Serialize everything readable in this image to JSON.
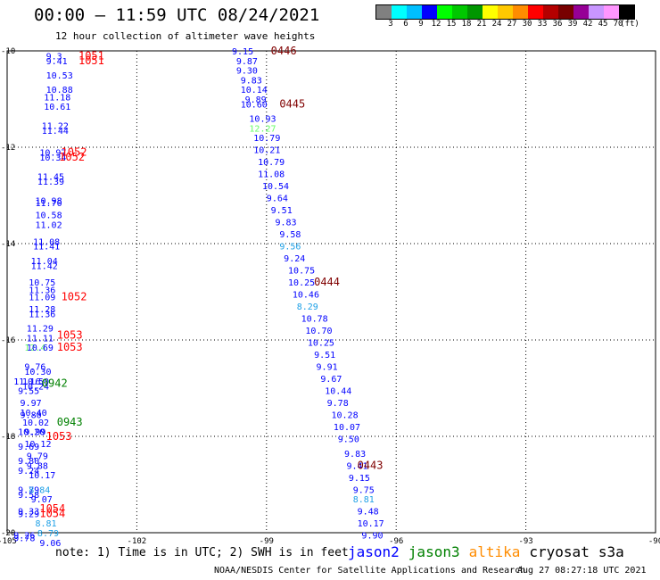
{
  "header": {
    "title": "00:00 – 11:59 UTC 08/24/2021",
    "subtitle": "12 hour collection of altimeter wave heights"
  },
  "colorbar": {
    "colors": [
      "#808080",
      "#00ffff",
      "#00bfff",
      "#0000ff",
      "#00ff00",
      "#00c800",
      "#009600",
      "#ffff00",
      "#ffc800",
      "#ff8c00",
      "#ff0000",
      "#b40000",
      "#780000",
      "#960096",
      "#c896ff",
      "#ff96ff",
      "#000000"
    ],
    "labels": [
      "3",
      "6",
      "9",
      "12",
      "15",
      "18",
      "21",
      "24",
      "27",
      "30",
      "33",
      "36",
      "39",
      "42",
      "45",
      "70",
      "(ft)"
    ]
  },
  "note": "note:  1) Time is in UTC;  2) SWH is in feet",
  "legend": [
    {
      "name": "jason2",
      "color": "#0000ff"
    },
    {
      "name": "jason3",
      "color": "#008000"
    },
    {
      "name": "altika",
      "color": "#ff8c00"
    },
    {
      "name": "cryosat"
    },
    {
      "name": "s3a"
    }
  ],
  "footer": {
    "left": "NOAA/NESDIS Center for Satellite Applications and Research",
    "right": "Aug 27 08:27:18 UTC 2021"
  },
  "chart_data": {
    "type": "scatter",
    "title": "00:00 – 11:59 UTC 08/24/2021",
    "xlim": [
      -105,
      -90
    ],
    "ylim": [
      -20,
      -10
    ],
    "xticks": [
      {
        "v": -105,
        "label": "-105"
      },
      {
        "v": -102,
        "label": "-102"
      },
      {
        "v": -99,
        "label": "-99"
      },
      {
        "v": -96,
        "label": "-96"
      },
      {
        "v": -93,
        "label": "-93"
      },
      {
        "v": -90,
        "label": "-90"
      }
    ],
    "yticks": [
      {
        "v": -10,
        "label": "-10"
      },
      {
        "v": -12,
        "label": "-12"
      },
      {
        "v": -14,
        "label": "-14"
      },
      {
        "v": -16,
        "label": "-16"
      },
      {
        "v": -18,
        "label": "-18"
      },
      {
        "v": -20,
        "label": "-20"
      }
    ],
    "grid": true,
    "labels": [
      {
        "lon": -99.8,
        "lat": -10.0,
        "text": "9.15",
        "color": "#0000ff"
      },
      {
        "lon": -99.7,
        "lat": -10.2,
        "text": "9.87",
        "color": "#0000ff"
      },
      {
        "lon": -99.7,
        "lat": -10.4,
        "text": "9.30",
        "color": "#0000ff"
      },
      {
        "lon": -99.6,
        "lat": -10.6,
        "text": "9.83",
        "color": "#0000ff"
      },
      {
        "lon": -99.6,
        "lat": -10.8,
        "text": "10.14",
        "color": "#0000ff"
      },
      {
        "lon": -99.5,
        "lat": -11.0,
        "text": "9.89",
        "color": "#0000ff"
      },
      {
        "lon": -99.6,
        "lat": -11.1,
        "text": "10.60",
        "color": "#0000ff"
      },
      {
        "lon": -99.4,
        "lat": -11.4,
        "text": "10.93",
        "color": "#0000ff"
      },
      {
        "lon": -99.4,
        "lat": -11.6,
        "text": "12.27",
        "color": "#66ff66"
      },
      {
        "lon": -99.3,
        "lat": -11.8,
        "text": "10.79",
        "color": "#0000ff"
      },
      {
        "lon": -99.3,
        "lat": -12.05,
        "text": "10.21",
        "color": "#0000ff"
      },
      {
        "lon": -99.2,
        "lat": -12.3,
        "text": "10.79",
        "color": "#0000ff"
      },
      {
        "lon": -99.2,
        "lat": -12.55,
        "text": "11.08",
        "color": "#0000ff"
      },
      {
        "lon": -99.1,
        "lat": -12.8,
        "text": "10.54",
        "color": "#0000ff"
      },
      {
        "lon": -99.0,
        "lat": -13.05,
        "text": "9.64",
        "color": "#0000ff"
      },
      {
        "lon": -98.9,
        "lat": -13.3,
        "text": "9.51",
        "color": "#0000ff"
      },
      {
        "lon": -98.8,
        "lat": -13.55,
        "text": "9.83",
        "color": "#0000ff"
      },
      {
        "lon": -98.7,
        "lat": -13.8,
        "text": "9.58",
        "color": "#0000ff"
      },
      {
        "lon": -98.7,
        "lat": -14.05,
        "text": "9.56",
        "color": "#1ea0e6"
      },
      {
        "lon": -98.6,
        "lat": -14.3,
        "text": "9.24",
        "color": "#0000ff"
      },
      {
        "lon": -98.5,
        "lat": -14.55,
        "text": "10.75",
        "color": "#0000ff"
      },
      {
        "lon": -98.5,
        "lat": -14.8,
        "text": "10.25",
        "color": "#0000ff"
      },
      {
        "lon": -98.4,
        "lat": -15.05,
        "text": "10.46",
        "color": "#0000ff"
      },
      {
        "lon": -98.3,
        "lat": -15.3,
        "text": "8.29",
        "color": "#1ea0e6"
      },
      {
        "lon": -98.2,
        "lat": -15.55,
        "text": "10.78",
        "color": "#0000ff"
      },
      {
        "lon": -98.1,
        "lat": -15.8,
        "text": "10.70",
        "color": "#0000ff"
      },
      {
        "lon": -98.05,
        "lat": -16.05,
        "text": "10.25",
        "color": "#0000ff"
      },
      {
        "lon": -97.9,
        "lat": -16.3,
        "text": "9.51",
        "color": "#0000ff"
      },
      {
        "lon": -97.85,
        "lat": -16.55,
        "text": "9.91",
        "color": "#0000ff"
      },
      {
        "lon": -97.75,
        "lat": -16.8,
        "text": "9.67",
        "color": "#0000ff"
      },
      {
        "lon": -97.65,
        "lat": -17.05,
        "text": "10.44",
        "color": "#0000ff"
      },
      {
        "lon": -97.6,
        "lat": -17.3,
        "text": "9.78",
        "color": "#0000ff"
      },
      {
        "lon": -97.5,
        "lat": -17.55,
        "text": "10.28",
        "color": "#0000ff"
      },
      {
        "lon": -97.45,
        "lat": -17.8,
        "text": "10.07",
        "color": "#0000ff"
      },
      {
        "lon": -97.35,
        "lat": -18.05,
        "text": "9.50",
        "color": "#0000ff"
      },
      {
        "lon": -97.2,
        "lat": -18.35,
        "text": "9.83",
        "color": "#0000ff"
      },
      {
        "lon": -97.15,
        "lat": -18.6,
        "text": "9.41",
        "color": "#0000ff"
      },
      {
        "lon": -97.1,
        "lat": -18.85,
        "text": "9.15",
        "color": "#0000ff"
      },
      {
        "lon": -97.0,
        "lat": -19.1,
        "text": "9.75",
        "color": "#0000ff"
      },
      {
        "lon": -97.0,
        "lat": -19.3,
        "text": "8.81",
        "color": "#1ea0e6"
      },
      {
        "lon": -96.9,
        "lat": -19.55,
        "text": "9.48",
        "color": "#0000ff"
      },
      {
        "lon": -96.9,
        "lat": -19.8,
        "text": "10.17",
        "color": "#0000ff"
      },
      {
        "lon": -96.8,
        "lat": -20.05,
        "text": "9.90",
        "color": "#0000ff"
      },
      {
        "lon": -98.9,
        "lat": -10.0,
        "text": "0446",
        "color": "#800000"
      },
      {
        "lon": -98.7,
        "lat": -11.1,
        "text": "0445",
        "color": "#800000"
      },
      {
        "lon": -97.9,
        "lat": -14.8,
        "text": "0444",
        "color": "#800000"
      },
      {
        "lon": -96.9,
        "lat": -18.6,
        "text": "0443",
        "color": "#800000"
      },
      {
        "lon": -104.1,
        "lat": -10.1,
        "text": "9.3",
        "color": "#0000ff"
      },
      {
        "lon": -104.1,
        "lat": -10.2,
        "text": "9.41",
        "color": "#0000ff"
      },
      {
        "lon": -104.1,
        "lat": -10.5,
        "text": "10.53",
        "color": "#0000ff"
      },
      {
        "lon": -104.1,
        "lat": -10.8,
        "text": "10.88",
        "color": "#0000ff"
      },
      {
        "lon": -104.15,
        "lat": -10.95,
        "text": "11.18",
        "color": "#0000ff"
      },
      {
        "lon": -104.15,
        "lat": -11.15,
        "text": "10.61",
        "color": "#0000ff"
      },
      {
        "lon": -104.2,
        "lat": -11.55,
        "text": "11.22",
        "color": "#0000ff"
      },
      {
        "lon": -104.2,
        "lat": -11.65,
        "text": "11.44",
        "color": "#0000ff"
      },
      {
        "lon": -104.25,
        "lat": -12.1,
        "text": "10.97",
        "color": "#0000ff"
      },
      {
        "lon": -104.25,
        "lat": -12.2,
        "text": "10.34",
        "color": "#0000ff"
      },
      {
        "lon": -104.3,
        "lat": -12.6,
        "text": "11.45",
        "color": "#0000ff"
      },
      {
        "lon": -104.3,
        "lat": -12.7,
        "text": "11.39",
        "color": "#0000ff"
      },
      {
        "lon": -104.35,
        "lat": -13.1,
        "text": "10.98",
        "color": "#0000ff"
      },
      {
        "lon": -104.35,
        "lat": -13.15,
        "text": "11.70",
        "color": "#0000ff"
      },
      {
        "lon": -104.35,
        "lat": -13.4,
        "text": "10.58",
        "color": "#0000ff"
      },
      {
        "lon": -104.35,
        "lat": -13.6,
        "text": "11.02",
        "color": "#0000ff"
      },
      {
        "lon": -104.4,
        "lat": -13.95,
        "text": "11.08",
        "color": "#0000ff"
      },
      {
        "lon": -104.4,
        "lat": -14.05,
        "text": "11.41",
        "color": "#0000ff"
      },
      {
        "lon": -104.45,
        "lat": -14.35,
        "text": "11.04",
        "color": "#0000ff"
      },
      {
        "lon": -104.45,
        "lat": -14.45,
        "text": "11.42",
        "color": "#0000ff"
      },
      {
        "lon": -104.5,
        "lat": -14.8,
        "text": "10.75",
        "color": "#0000ff"
      },
      {
        "lon": -104.5,
        "lat": -14.95,
        "text": "11.36",
        "color": "#0000ff"
      },
      {
        "lon": -104.5,
        "lat": -15.1,
        "text": "11.09",
        "color": "#0000ff"
      },
      {
        "lon": -104.5,
        "lat": -15.35,
        "text": "11.28",
        "color": "#0000ff"
      },
      {
        "lon": -104.5,
        "lat": -15.45,
        "text": "11.36",
        "color": "#0000ff"
      },
      {
        "lon": -104.55,
        "lat": -15.75,
        "text": "11.29",
        "color": "#0000ff"
      },
      {
        "lon": -104.55,
        "lat": -15.95,
        "text": "11.11",
        "color": "#0000ff"
      },
      {
        "lon": -104.6,
        "lat": -16.15,
        "text": "12.4",
        "color": "#66ff66"
      },
      {
        "lon": -104.55,
        "lat": -16.15,
        "text": "10.69",
        "color": "#0000ff"
      },
      {
        "lon": -104.6,
        "lat": -16.55,
        "text": "9.76",
        "color": "#0000ff"
      },
      {
        "lon": -104.6,
        "lat": -16.65,
        "text": "10.30",
        "color": "#0000ff"
      },
      {
        "lon": -104.85,
        "lat": -16.85,
        "text": "11.16",
        "color": "#0000ff"
      },
      {
        "lon": -104.65,
        "lat": -16.85,
        "text": "10.50",
        "color": "#0000ff"
      },
      {
        "lon": -104.65,
        "lat": -16.95,
        "text": "10.24",
        "color": "#0000ff"
      },
      {
        "lon": -104.75,
        "lat": -17.05,
        "text": "9.55",
        "color": "#0000ff"
      },
      {
        "lon": -104.7,
        "lat": -17.3,
        "text": "9.97",
        "color": "#0000ff"
      },
      {
        "lon": -104.7,
        "lat": -17.5,
        "text": "10.40",
        "color": "#0000ff"
      },
      {
        "lon": -104.7,
        "lat": -17.55,
        "text": "9.80",
        "color": "#0000ff"
      },
      {
        "lon": -104.65,
        "lat": -17.7,
        "text": "10.02",
        "color": "#0000ff"
      },
      {
        "lon": -104.75,
        "lat": -17.9,
        "text": "10.20",
        "color": "#0000ff"
      },
      {
        "lon": -104.6,
        "lat": -17.9,
        "text": "9.99",
        "color": "#0000ff"
      },
      {
        "lon": -104.6,
        "lat": -18.15,
        "text": "10.12",
        "color": "#0000ff"
      },
      {
        "lon": -104.75,
        "lat": -18.2,
        "text": "9.69",
        "color": "#0000ff"
      },
      {
        "lon": -104.55,
        "lat": -18.4,
        "text": "9.79",
        "color": "#0000ff"
      },
      {
        "lon": -104.75,
        "lat": -18.5,
        "text": "9.80",
        "color": "#0000ff"
      },
      {
        "lon": -104.55,
        "lat": -18.6,
        "text": "9.88",
        "color": "#0000ff"
      },
      {
        "lon": -104.75,
        "lat": -18.7,
        "text": "9.24",
        "color": "#0000ff"
      },
      {
        "lon": -104.5,
        "lat": -18.8,
        "text": "10.17",
        "color": "#0000ff"
      },
      {
        "lon": -104.75,
        "lat": -19.1,
        "text": "9.79",
        "color": "#0000ff"
      },
      {
        "lon": -104.75,
        "lat": -19.2,
        "text": "9.58",
        "color": "#0000ff"
      },
      {
        "lon": -104.5,
        "lat": -19.1,
        "text": "8.84",
        "color": "#1ea0e6"
      },
      {
        "lon": -104.45,
        "lat": -19.3,
        "text": "9.07",
        "color": "#0000ff"
      },
      {
        "lon": -104.75,
        "lat": -19.55,
        "text": "9.33",
        "color": "#0000ff"
      },
      {
        "lon": -104.75,
        "lat": -19.6,
        "text": "9.29",
        "color": "#0000ff"
      },
      {
        "lon": -104.35,
        "lat": -19.8,
        "text": "8.81",
        "color": "#1ea0e6"
      },
      {
        "lon": -104.3,
        "lat": -20.0,
        "text": "8.79",
        "color": "#1ea0e6"
      },
      {
        "lon": -104.85,
        "lat": -20.05,
        "text": "9.26",
        "color": "#0000ff"
      },
      {
        "lon": -104.85,
        "lat": -20.1,
        "text": "9.78",
        "color": "#0000ff"
      },
      {
        "lon": -104.25,
        "lat": -20.2,
        "text": "9.06",
        "color": "#0000ff"
      },
      {
        "lon": -103.35,
        "lat": -10.1,
        "text": "1051",
        "color": "#ff0000"
      },
      {
        "lon": -103.35,
        "lat": -10.2,
        "text": "1051",
        "color": "#ff0000"
      },
      {
        "lon": -103.75,
        "lat": -12.1,
        "text": "1052",
        "color": "#ff0000"
      },
      {
        "lon": -103.8,
        "lat": -12.2,
        "text": "1052",
        "color": "#ff0000"
      },
      {
        "lon": -103.75,
        "lat": -15.1,
        "text": "1052",
        "color": "#ff0000"
      },
      {
        "lon": -103.85,
        "lat": -15.9,
        "text": "1053",
        "color": "#ff0000"
      },
      {
        "lon": -103.85,
        "lat": -16.15,
        "text": "1053",
        "color": "#ff0000"
      },
      {
        "lon": -104.1,
        "lat": -18.0,
        "text": "1053",
        "color": "#ff0000"
      },
      {
        "lon": -104.25,
        "lat": -19.5,
        "text": "1054",
        "color": "#ff0000"
      },
      {
        "lon": -104.25,
        "lat": -19.6,
        "text": "1054",
        "color": "#ff0000"
      },
      {
        "lon": -104.2,
        "lat": -16.9,
        "text": "0942",
        "color": "#008000"
      },
      {
        "lon": -103.85,
        "lat": -17.7,
        "text": "0943",
        "color": "#008000"
      }
    ]
  }
}
